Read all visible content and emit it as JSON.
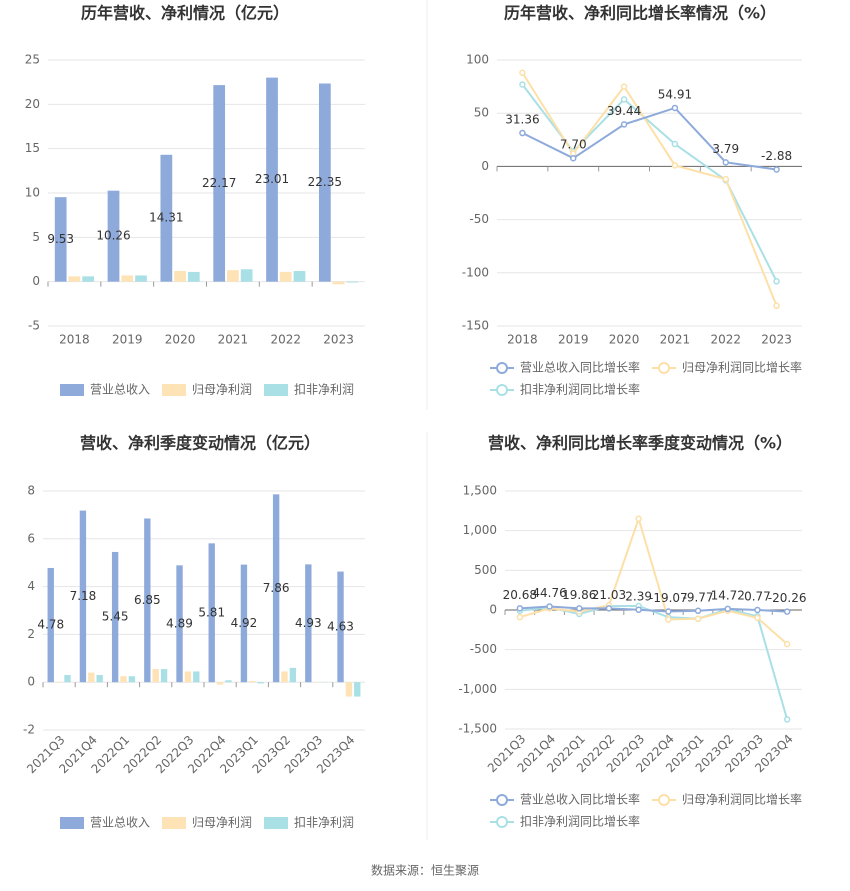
{
  "chart_data": [
    {
      "type": "bar",
      "title": "历年营收、净利情况（亿元）",
      "categories": [
        "2018",
        "2019",
        "2020",
        "2021",
        "2022",
        "2023"
      ],
      "series": [
        {
          "name": "营业总收入",
          "color": "#8eaadb",
          "labels": true,
          "values": [
            9.53,
            10.26,
            14.31,
            22.17,
            23.01,
            22.35
          ]
        },
        {
          "name": "归母净利润",
          "color": "#fde3b5",
          "values": [
            0.6,
            0.7,
            1.2,
            1.3,
            1.1,
            -0.3
          ]
        },
        {
          "name": "扣非净利润",
          "color": "#a9e0e6",
          "values": [
            0.6,
            0.7,
            1.1,
            1.4,
            1.2,
            -0.1
          ]
        }
      ],
      "ylim": [
        -5,
        25
      ],
      "yticks": [
        -5,
        0,
        5,
        10,
        15,
        20,
        25
      ],
      "grid": true
    },
    {
      "type": "line",
      "title": "历年营收、净利同比增长率情况（%）",
      "categories": [
        "2018",
        "2019",
        "2020",
        "2021",
        "2022",
        "2023"
      ],
      "series": [
        {
          "name": "营业总收入同比增长率",
          "color": "#8eaadb",
          "labels": true,
          "values": [
            31.36,
            7.7,
            39.44,
            54.91,
            3.79,
            -2.88
          ],
          "value_labels": [
            "31.36",
            "7.70",
            "39.44",
            "54.91",
            "3.79",
            "-2.88"
          ]
        },
        {
          "name": "归母净利润同比增长率",
          "color": "#fde0a8",
          "values": [
            88,
            12,
            75,
            1,
            -12,
            -131
          ]
        },
        {
          "name": "扣非净利润同比增长率",
          "color": "#a9e0e6",
          "values": [
            77,
            14,
            63,
            21,
            -13,
            -108
          ]
        }
      ],
      "ylim": [
        -150,
        100
      ],
      "yticks": [
        -150,
        -100,
        -50,
        0,
        50,
        100
      ],
      "grid": true
    },
    {
      "type": "bar",
      "title": "营收、净利季度变动情况（亿元）",
      "categories": [
        "2021Q3",
        "2021Q4",
        "2022Q1",
        "2022Q2",
        "2022Q3",
        "2022Q4",
        "2023Q1",
        "2023Q2",
        "2023Q3",
        "2023Q4"
      ],
      "series": [
        {
          "name": "营业总收入",
          "color": "#8eaadb",
          "labels": true,
          "values": [
            4.78,
            7.18,
            5.45,
            6.85,
            4.89,
            5.81,
            4.92,
            7.86,
            4.93,
            4.63
          ]
        },
        {
          "name": "归母净利润",
          "color": "#fde3b5",
          "values": [
            0.02,
            0.4,
            0.25,
            0.55,
            0.45,
            -0.1,
            0.05,
            0.45,
            0.01,
            -0.6
          ]
        },
        {
          "name": "扣非净利润",
          "color": "#a9e0e6",
          "values": [
            0.3,
            0.3,
            0.25,
            0.55,
            0.45,
            0.08,
            -0.05,
            0.6,
            0.01,
            -0.6
          ]
        }
      ],
      "ylim": [
        -2,
        8
      ],
      "yticks": [
        -2,
        0,
        2,
        4,
        6,
        8
      ],
      "grid": true
    },
    {
      "type": "line",
      "title": "营收、净利同比增长率季度变动情况（%）",
      "categories": [
        "2021Q3",
        "2021Q4",
        "2022Q1",
        "2022Q2",
        "2022Q3",
        "2022Q4",
        "2023Q1",
        "2023Q2",
        "2023Q3",
        "2023Q4"
      ],
      "series": [
        {
          "name": "营业总收入同比增长率",
          "color": "#8eaadb",
          "labels": true,
          "values": [
            20.68,
            44.76,
            19.86,
            21.03,
            2.39,
            -19.07,
            -9.77,
            14.72,
            0.77,
            -20.26
          ]
        },
        {
          "name": "归母净利润同比增长率",
          "color": "#fde0a8",
          "values": [
            -90,
            20,
            -20,
            60,
            1150,
            -120,
            -110,
            -10,
            -100,
            -430
          ]
        },
        {
          "name": "扣非净利润同比增长率",
          "color": "#a9e0e6",
          "values": [
            -10,
            30,
            -50,
            50,
            50,
            -90,
            -110,
            10,
            -80,
            -1380
          ]
        }
      ],
      "ylim": [
        -1500,
        1500
      ],
      "yticks": [
        {
          "value": -1500,
          "label": "-1,500"
        },
        {
          "value": -1000,
          "label": "-1,000"
        },
        -500,
        0,
        500,
        {
          "value": 1000,
          "label": "1,000"
        },
        {
          "value": 1500,
          "label": "1,500"
        }
      ],
      "grid": true
    }
  ],
  "source": "数据来源：恒生聚源"
}
